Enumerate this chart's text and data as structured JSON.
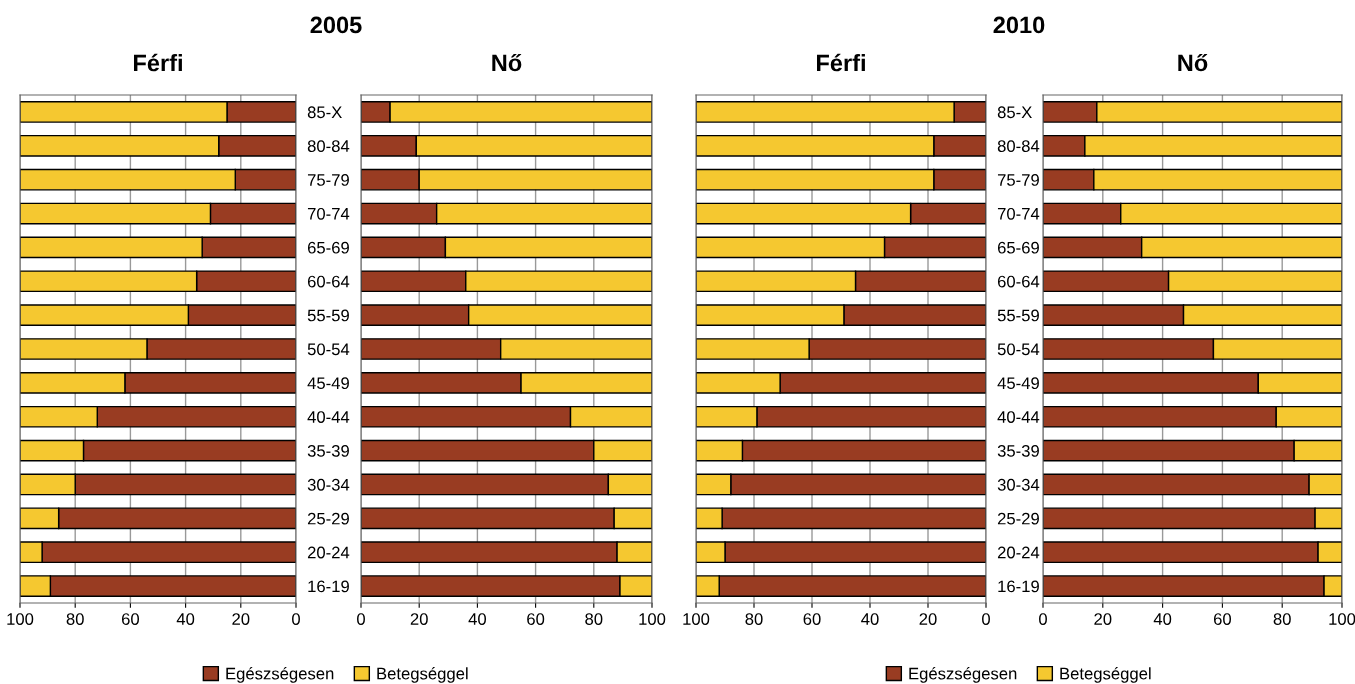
{
  "chart_data": [
    {
      "type": "bar",
      "orientation": "horizontal",
      "stacked": true,
      "title": "2005",
      "subtitle": "Férfi",
      "categories": [
        "85-X",
        "80-84",
        "75-79",
        "70-74",
        "65-69",
        "60-64",
        "55-59",
        "50-54",
        "45-49",
        "40-44",
        "35-39",
        "30-34",
        "25-29",
        "20-24",
        "16-19"
      ],
      "series": [
        {
          "name": "Egészségesen",
          "color": "#993c22",
          "values": [
            25,
            28,
            22,
            31,
            34,
            36,
            39,
            54,
            62,
            72,
            77,
            80,
            86,
            92,
            89
          ]
        },
        {
          "name": "Betegséggel",
          "color": "#f5c830",
          "values": [
            75,
            72,
            78,
            69,
            66,
            64,
            61,
            46,
            38,
            28,
            23,
            20,
            14,
            8,
            11
          ]
        }
      ],
      "xlim": [
        100,
        0
      ],
      "xticks": [
        100,
        80,
        60,
        40,
        20,
        0
      ],
      "grid": "x",
      "legend": "bottom"
    },
    {
      "type": "bar",
      "orientation": "horizontal",
      "stacked": true,
      "subtitle": "Nő",
      "categories": [
        null,
        null,
        null,
        null,
        null,
        null,
        null,
        null,
        null,
        null,
        null,
        null,
        null,
        null,
        null
      ],
      "series": [
        {
          "color": "#993c22",
          "values": [
            10,
            19,
            20,
            26,
            29,
            36,
            37,
            48,
            55,
            72,
            80,
            85,
            87,
            88,
            89
          ]
        },
        {
          "color": "#f5c830",
          "values": [
            90,
            81,
            80,
            74,
            71,
            64,
            63,
            52,
            45,
            28,
            20,
            15,
            13,
            12,
            11
          ]
        }
      ],
      "xlim": [
        0,
        100
      ],
      "xticks": [
        0,
        20,
        40,
        60,
        80,
        100
      ],
      "grid": "x",
      "tick_labels": "x"
    },
    {
      "type": "bar",
      "orientation": "horizontal",
      "stacked": true,
      "title": "2010",
      "subtitle": "Férfi",
      "categories": [
        "85-X",
        "80-84",
        "75-79",
        "70-74",
        "65-69",
        "60-64",
        "55-59",
        "50-54",
        "45-49",
        "40-44",
        "35-39",
        "30-34",
        "25-29",
        "20-24",
        "16-19"
      ],
      "series": [
        {
          "name": "Egészségesen",
          "color": "#993c22",
          "values": [
            11,
            18,
            18,
            26,
            35,
            45,
            49,
            61,
            71,
            79,
            84,
            88,
            91,
            90,
            92
          ]
        },
        {
          "name": "Betegséggel",
          "color": "#f5c830",
          "values": [
            89,
            82,
            82,
            74,
            65,
            55,
            51,
            39,
            29,
            21,
            16,
            12,
            9,
            10,
            8
          ]
        }
      ],
      "xlim": [
        100,
        0
      ],
      "xticks": [
        100,
        80,
        60,
        40,
        20,
        0
      ],
      "grid": "x",
      "legend": "bottom"
    },
    {
      "type": "bar",
      "orientation": "horizontal",
      "stacked": true,
      "subtitle": "Nő",
      "categories": [
        null,
        null,
        null,
        null,
        null,
        null,
        null,
        null,
        null,
        null,
        null,
        null,
        null,
        null,
        null
      ],
      "series": [
        {
          "color": "#993c22",
          "values": [
            18,
            14,
            17,
            26,
            33,
            42,
            47,
            57,
            72,
            78,
            84,
            89,
            91,
            92,
            94
          ]
        },
        {
          "color": "#f5c830",
          "values": [
            82,
            86,
            83,
            74,
            67,
            58,
            53,
            43,
            28,
            22,
            16,
            11,
            9,
            8,
            6
          ]
        }
      ],
      "xlim": [
        0,
        100
      ],
      "xticks": [
        0,
        20,
        40,
        60,
        80,
        100
      ],
      "grid": "x",
      "tick_labels": "x"
    }
  ]
}
